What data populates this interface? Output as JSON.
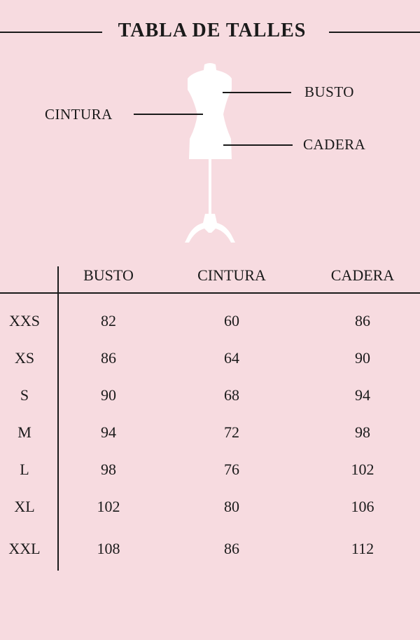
{
  "title": "TABLA DE TALLES",
  "diagram": {
    "busto": "BUSTO",
    "cintura": "CINTURA",
    "cadera": "CADERA"
  },
  "table": {
    "headers": [
      "",
      "BUSTO",
      "CINTURA",
      "CADERA"
    ],
    "rows": [
      [
        "XXS",
        "82",
        "60",
        "86"
      ],
      [
        "XS",
        "86",
        "64",
        "90"
      ],
      [
        "S",
        "90",
        "68",
        "94"
      ],
      [
        "M",
        "94",
        "72",
        "98"
      ],
      [
        "L",
        "98",
        "76",
        "102"
      ],
      [
        "XL",
        "102",
        "80",
        "106"
      ],
      [
        "XXL",
        "108",
        "86",
        "112"
      ]
    ]
  },
  "colors": {
    "background": "#f7dbe0",
    "ink": "#1a1a1a",
    "mannequin": "#ffffff"
  }
}
